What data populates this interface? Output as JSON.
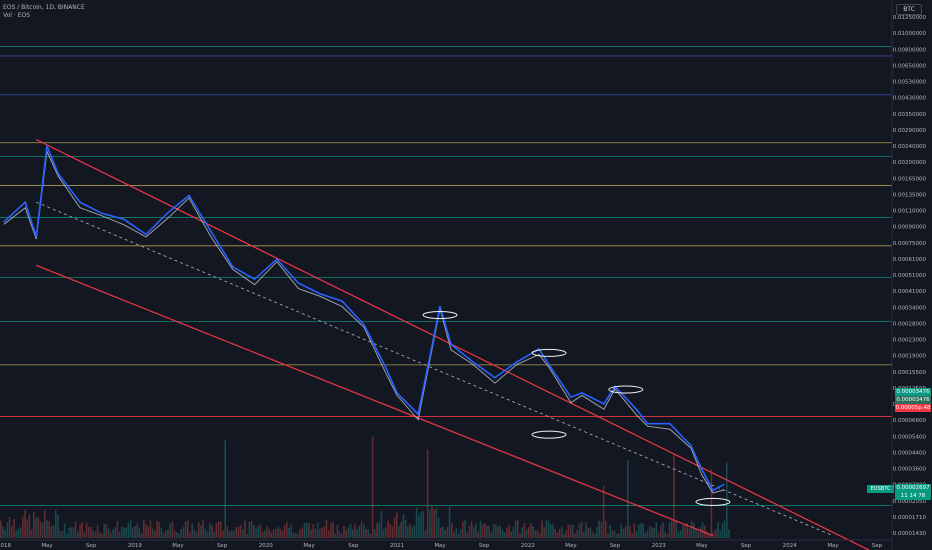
{
  "header": {
    "symbol_line": "EOS / Bitcoin, 1D, BINANCE",
    "volume_line": "Vol · EOS"
  },
  "axis": {
    "currency_button": "BTC"
  },
  "badges": {
    "pair_tag": "EOSBTC",
    "price_main": "0.00003476",
    "price_secondary": "0.00003476",
    "price_red": "0.00005p.48",
    "price_last": "0.00002697",
    "countdown": "11 14 78"
  },
  "colors": {
    "background": "#131722",
    "channel": "#f23645",
    "price_line": "#2962ff",
    "price_line_white": "#c8cdd8",
    "level_green": "#089981",
    "level_yellow": "#c9b458",
    "level_blue": "#3f51b5",
    "ellipse": "#f0f0f0"
  },
  "chart_data": {
    "type": "line",
    "scale": "log",
    "y_tick_labels": [
      "0.01250000",
      "0.01000000",
      "0.00800000",
      "0.00650000",
      "0.00530000",
      "0.00430000",
      "0.00350000",
      "0.00290000",
      "0.00240000",
      "0.00200000",
      "0.00165000",
      "0.00135000",
      "0.00110000",
      "0.00090000",
      "0.00075000",
      "0.00061000",
      "0.00051000",
      "0.00041000",
      "0.00034000",
      "0.00028000",
      "0.00023000",
      "0.00019000",
      "0.00015500",
      "0.00012500",
      "0.00010000",
      "0.00006600",
      "0.00005400",
      "0.00004400",
      "0.00003600",
      "0.00003000",
      "0.00002050",
      "0.00001710",
      "0.00001430"
    ],
    "x_tick_labels": [
      "2018",
      "May",
      "Sep",
      "2019",
      "May",
      "Sep",
      "2020",
      "May",
      "Sep",
      "2021",
      "May",
      "Sep",
      "2022",
      "May",
      "Sep",
      "2023",
      "May",
      "Sep",
      "2024",
      "May",
      "Sep"
    ],
    "price_series": {
      "name": "EOS / Bitcoin",
      "dates": [
        "2018-01",
        "2018-03",
        "2018-04",
        "2018-05",
        "2018-06",
        "2018-08",
        "2018-10",
        "2018-12",
        "2019-02",
        "2019-04",
        "2019-06",
        "2019-08",
        "2019-10",
        "2019-12",
        "2020-02",
        "2020-04",
        "2020-06",
        "2020-08",
        "2020-10",
        "2020-12",
        "2021-01",
        "2021-03",
        "2021-05",
        "2021-06",
        "2021-08",
        "2021-10",
        "2021-12",
        "2022-02",
        "2022-03",
        "2022-05",
        "2022-06",
        "2022-08",
        "2022-09",
        "2022-11",
        "2022-12",
        "2023-02",
        "2023-04",
        "2023-05",
        "2023-06",
        "2023-07"
      ],
      "values": [
        0.00085,
        0.0011,
        0.0007,
        0.0023,
        0.0016,
        0.0011,
        0.00095,
        0.00088,
        0.00072,
        0.00095,
        0.0012,
        0.00075,
        0.00047,
        0.0004,
        0.00052,
        0.00038,
        0.00033,
        0.0003,
        0.00022,
        0.000125,
        9e-05,
        6.8e-05,
        0.00028,
        0.00017,
        0.000135,
        0.00011,
        0.000135,
        0.00016,
        0.00013,
        8.5e-05,
        9e-05,
        7.8e-05,
        9.8e-05,
        7.2e-05,
        6e-05,
        6e-05,
        4.5e-05,
        3.3e-05,
        2.5e-05,
        2.7e-05
      ]
    },
    "horizontal_levels": [
      {
        "value": 0.0085,
        "color": "green"
      },
      {
        "value": 0.0075,
        "color": "blue"
      },
      {
        "value": 0.0045,
        "color": "blue"
      },
      {
        "value": 0.0024,
        "color": "yellow"
      },
      {
        "value": 0.002,
        "color": "green"
      },
      {
        "value": 0.00137,
        "color": "yellow"
      },
      {
        "value": 0.0009,
        "color": "green"
      },
      {
        "value": 0.00062,
        "color": "yellow"
      },
      {
        "value": 0.00041,
        "color": "green"
      },
      {
        "value": 0.00023,
        "color": "green"
      },
      {
        "value": 0.00013,
        "color": "yellow"
      },
      {
        "value": 6.6e-05,
        "color": "red"
      },
      {
        "value": 2.05e-05,
        "color": "green"
      }
    ],
    "channel_upper": {
      "from": [
        "2018-04",
        0.0025
      ],
      "to": [
        "2023-11",
        2.2e-05
      ]
    },
    "channel_lower": {
      "from": [
        "2018-04",
        0.00048
      ],
      "to": [
        "2023-06",
        1.38e-05
      ]
    },
    "midline": {
      "from": [
        "2018-04",
        0.0011
      ],
      "to": [
        "2024-05",
        1.38e-05
      ]
    },
    "ellipses": [
      {
        "date": "2021-05",
        "value": 0.00025
      },
      {
        "date": "2022-03",
        "value": 0.000152
      },
      {
        "date": "2022-03",
        "value": 5.2e-05
      },
      {
        "date": "2022-10",
        "value": 9.4e-05
      },
      {
        "date": "2023-06",
        "value": 2.15e-05
      }
    ],
    "grid": false
  }
}
